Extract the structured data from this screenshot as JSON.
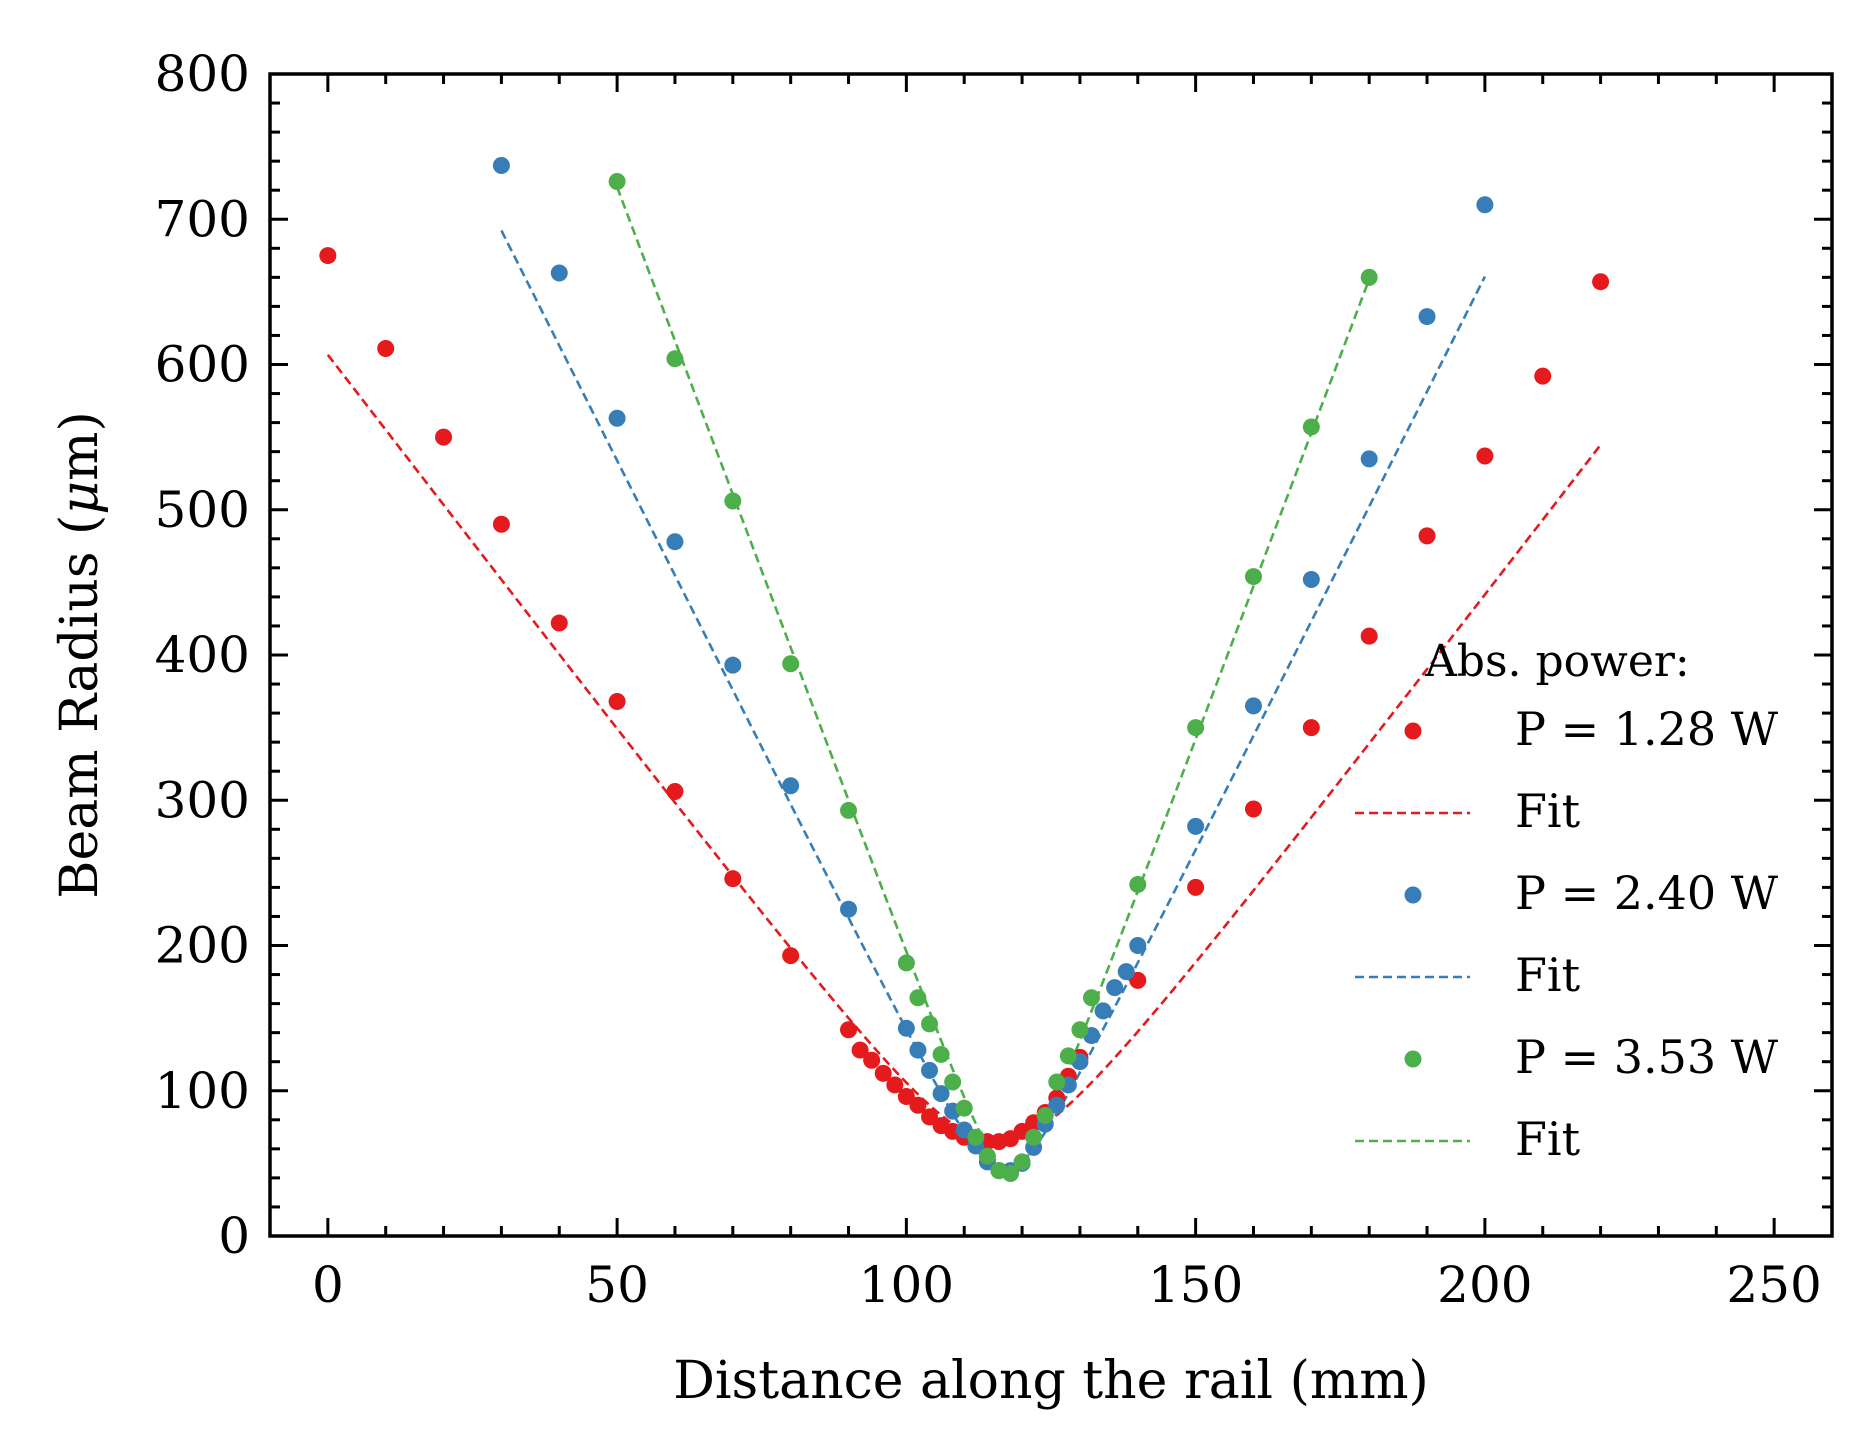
{
  "chart_data": {
    "type": "scatter",
    "xlabel": "Distance along the rail (mm)",
    "ylabel_parts": {
      "before": "Beam Radius (",
      "italic": "μ",
      "after": "m)"
    },
    "xlim": [
      -10,
      260
    ],
    "ylim": [
      0,
      800
    ],
    "xticks": [
      0,
      50,
      100,
      150,
      200,
      250
    ],
    "yticks": [
      0,
      100,
      200,
      300,
      400,
      500,
      600,
      700,
      800
    ],
    "x_minor_step": 10,
    "y_minor_step": 20,
    "grid": false,
    "legend": {
      "placement": "center-right",
      "title": "Abs. power:",
      "entries": [
        {
          "label": "P = 1.28 W",
          "kind": "marker",
          "series": 0
        },
        {
          "label": "Fit",
          "kind": "line",
          "series": 0
        },
        {
          "label": "P = 2.40 W",
          "kind": "marker",
          "series": 1
        },
        {
          "label": "Fit",
          "kind": "line",
          "series": 1
        },
        {
          "label": "P = 3.53 W",
          "kind": "marker",
          "series": 2
        },
        {
          "label": "Fit",
          "kind": "line",
          "series": 2
        }
      ]
    },
    "series": [
      {
        "name": "P = 1.28 W",
        "color": "#e41a1c",
        "fit": {
          "w0": 65,
          "z0": 116,
          "slope": 5.2,
          "range": [
            0,
            220
          ]
        },
        "points": [
          [
            0,
            675
          ],
          [
            10,
            611
          ],
          [
            20,
            550
          ],
          [
            30,
            490
          ],
          [
            40,
            422
          ],
          [
            50,
            368
          ],
          [
            60,
            306
          ],
          [
            70,
            246
          ],
          [
            80,
            193
          ],
          [
            90,
            142
          ],
          [
            92,
            128
          ],
          [
            94,
            121
          ],
          [
            96,
            112
          ],
          [
            98,
            104
          ],
          [
            100,
            96
          ],
          [
            102,
            90
          ],
          [
            104,
            82
          ],
          [
            106,
            76
          ],
          [
            108,
            72
          ],
          [
            110,
            68
          ],
          [
            112,
            66
          ],
          [
            114,
            65
          ],
          [
            116,
            65
          ],
          [
            118,
            67
          ],
          [
            120,
            72
          ],
          [
            122,
            78
          ],
          [
            124,
            85
          ],
          [
            126,
            95
          ],
          [
            128,
            110
          ],
          [
            130,
            123
          ],
          [
            140,
            176
          ],
          [
            150,
            240
          ],
          [
            160,
            294
          ],
          [
            170,
            350
          ],
          [
            180,
            413
          ],
          [
            190,
            482
          ],
          [
            200,
            537
          ],
          [
            210,
            592
          ],
          [
            220,
            657
          ]
        ]
      },
      {
        "name": "P = 2.40 W",
        "color": "#377eb8",
        "fit": {
          "w0": 45,
          "z0": 117,
          "slope": 7.94,
          "range": [
            30,
            200
          ]
        },
        "points": [
          [
            30,
            737
          ],
          [
            40,
            663
          ],
          [
            50,
            563
          ],
          [
            60,
            478
          ],
          [
            70,
            393
          ],
          [
            80,
            310
          ],
          [
            90,
            225
          ],
          [
            100,
            143
          ],
          [
            102,
            128
          ],
          [
            104,
            114
          ],
          [
            106,
            98
          ],
          [
            108,
            86
          ],
          [
            110,
            73
          ],
          [
            112,
            62
          ],
          [
            114,
            51
          ],
          [
            116,
            45
          ],
          [
            118,
            45
          ],
          [
            120,
            50
          ],
          [
            122,
            61
          ],
          [
            124,
            77
          ],
          [
            126,
            90
          ],
          [
            128,
            104
          ],
          [
            130,
            120
          ],
          [
            132,
            138
          ],
          [
            134,
            155
          ],
          [
            136,
            171
          ],
          [
            138,
            182
          ],
          [
            140,
            200
          ],
          [
            150,
            282
          ],
          [
            160,
            365
          ],
          [
            170,
            452
          ],
          [
            180,
            535
          ],
          [
            190,
            633
          ],
          [
            200,
            710
          ]
        ]
      },
      {
        "name": "P = 3.53 W",
        "color": "#4daf4a",
        "fit": {
          "w0": 44,
          "z0": 118,
          "slope": 10.6,
          "range": [
            50,
            180
          ]
        },
        "points": [
          [
            50,
            726
          ],
          [
            60,
            604
          ],
          [
            70,
            506
          ],
          [
            80,
            394
          ],
          [
            90,
            293
          ],
          [
            100,
            188
          ],
          [
            102,
            164
          ],
          [
            104,
            146
          ],
          [
            106,
            125
          ],
          [
            108,
            106
          ],
          [
            110,
            88
          ],
          [
            112,
            68
          ],
          [
            114,
            55
          ],
          [
            116,
            45
          ],
          [
            118,
            43
          ],
          [
            120,
            51
          ],
          [
            122,
            68
          ],
          [
            124,
            83
          ],
          [
            126,
            106
          ],
          [
            128,
            124
          ],
          [
            130,
            142
          ],
          [
            132,
            164
          ],
          [
            140,
            242
          ],
          [
            150,
            350
          ],
          [
            160,
            454
          ],
          [
            170,
            557
          ],
          [
            180,
            660
          ]
        ]
      }
    ]
  }
}
